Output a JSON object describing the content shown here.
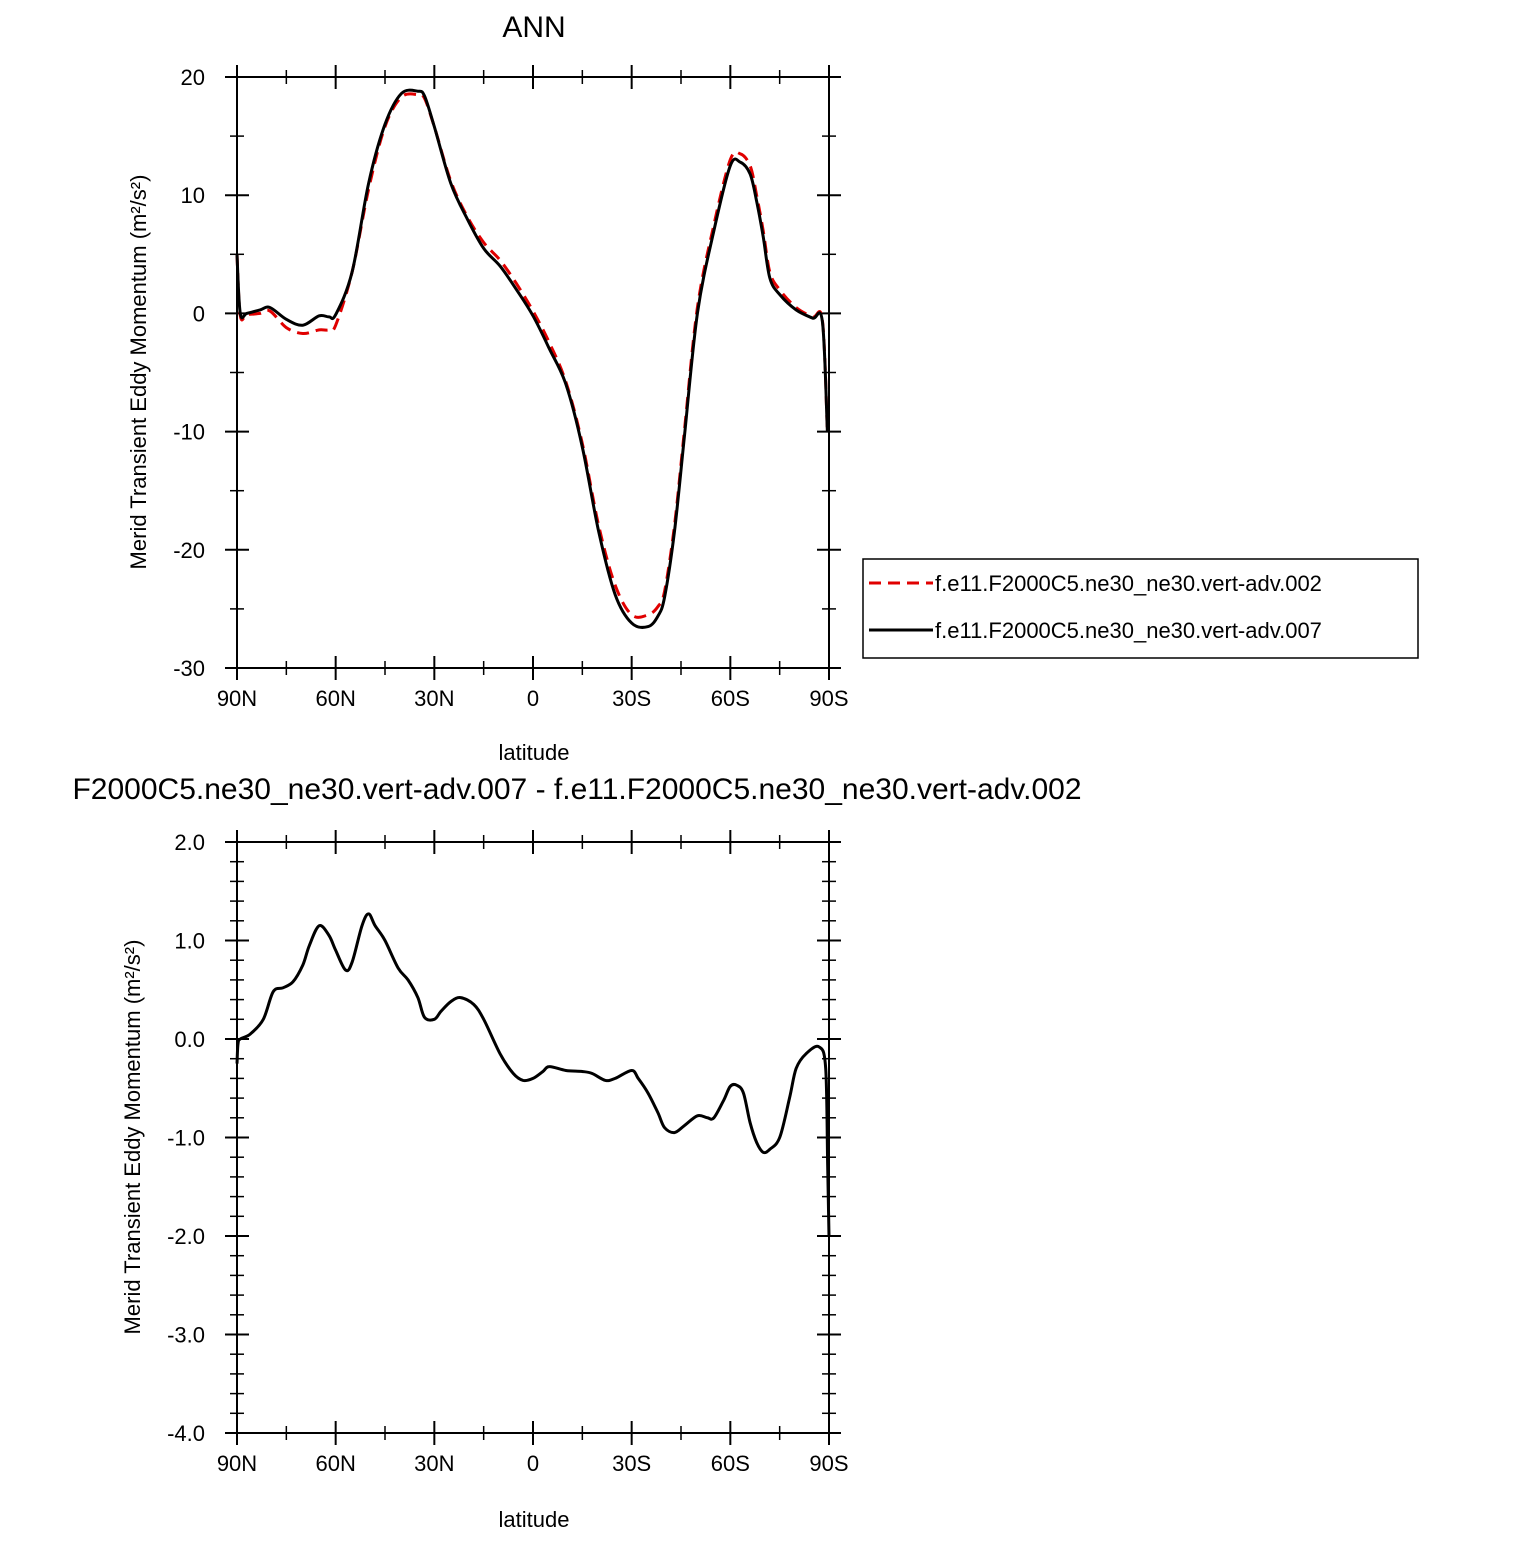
{
  "chart_data": [
    {
      "type": "line",
      "title": "ANN",
      "xlabel": "latitude",
      "ylabel": "Merid Transient Eddy Momentum (m²/s²)",
      "xlim": [
        90,
        -90
      ],
      "ylim": [
        -30,
        20
      ],
      "xticks": [
        90,
        60,
        30,
        0,
        -30,
        -60,
        -90
      ],
      "xtick_labels": [
        "90N",
        "60N",
        "30N",
        "0",
        "30S",
        "60S",
        "90S"
      ],
      "yticks": [
        20,
        10,
        0,
        -10,
        -20,
        -30
      ],
      "ytick_labels": [
        "20",
        "10",
        "0",
        "-10",
        "-20",
        "-30"
      ],
      "grid": false,
      "legend_position": "right",
      "series": [
        {
          "name": "f.e11.F2000C5.ne30_ne30.vert-adv.002",
          "color": "#e00000",
          "dash": "dashed",
          "x": [
            90,
            89,
            87,
            83,
            80,
            75,
            70,
            65,
            62,
            60,
            55,
            50,
            45,
            40,
            35,
            33,
            30,
            25,
            20,
            15,
            10,
            5,
            0,
            -5,
            -10,
            -15,
            -20,
            -25,
            -30,
            -35,
            -38,
            -40,
            -43,
            -46,
            -50,
            -55,
            -60,
            -63,
            -66,
            -68,
            -70,
            -72,
            -75,
            -80,
            -85,
            -88,
            -89.5
          ],
          "y": [
            5.0,
            -0.2,
            -0.1,
            0.0,
            0.2,
            -1.2,
            -1.7,
            -1.4,
            -1.4,
            -1.0,
            3.5,
            10.5,
            15.8,
            18.3,
            18.5,
            18.2,
            15.8,
            11.2,
            8.2,
            6.0,
            4.5,
            2.5,
            0.2,
            -2.5,
            -5.8,
            -11.0,
            -18.0,
            -23.0,
            -25.5,
            -25.5,
            -24.8,
            -23.5,
            -18.0,
            -10.0,
            0.5,
            7.5,
            13.0,
            13.5,
            12.5,
            10.0,
            7.0,
            3.5,
            2.0,
            0.5,
            -0.3,
            -0.6,
            -10.0
          ]
        },
        {
          "name": "f.e11.F2000C5.ne30_ne30.vert-adv.007",
          "color": "#000000",
          "dash": "solid",
          "x": [
            90,
            89,
            87,
            83,
            80,
            75,
            70,
            65,
            62,
            60,
            55,
            50,
            45,
            40,
            35,
            33,
            30,
            25,
            20,
            15,
            10,
            5,
            0,
            -5,
            -10,
            -15,
            -20,
            -25,
            -30,
            -35,
            -38,
            -40,
            -43,
            -46,
            -50,
            -55,
            -60,
            -63,
            -66,
            -68,
            -70,
            -72,
            -75,
            -80,
            -85,
            -88,
            -89.5
          ],
          "y": [
            5.0,
            0.0,
            0.0,
            0.3,
            0.5,
            -0.5,
            -1.0,
            -0.2,
            -0.3,
            -0.1,
            3.5,
            11.0,
            16.0,
            18.6,
            18.8,
            18.4,
            15.8,
            11.0,
            8.0,
            5.5,
            4.0,
            2.0,
            -0.2,
            -3.0,
            -6.0,
            -11.3,
            -18.5,
            -23.8,
            -26.2,
            -26.5,
            -25.6,
            -24.0,
            -18.5,
            -10.5,
            0.0,
            7.0,
            12.5,
            12.8,
            11.8,
            9.5,
            6.5,
            3.0,
            1.6,
            0.3,
            -0.4,
            -0.7,
            -10.0
          ]
        }
      ]
    },
    {
      "type": "line",
      "title": "F2000C5.ne30_ne30.vert-adv.007 - f.e11.F2000C5.ne30_ne30.vert-adv.002",
      "xlabel": "latitude",
      "ylabel": "Merid Transient Eddy Momentum (m²/s²)",
      "xlim": [
        90,
        -90
      ],
      "ylim": [
        -4.0,
        2.0
      ],
      "xticks": [
        90,
        60,
        30,
        0,
        -30,
        -60,
        -90
      ],
      "xtick_labels": [
        "90N",
        "60N",
        "30N",
        "0",
        "30S",
        "60S",
        "90S"
      ],
      "yticks": [
        2.0,
        1.0,
        0.0,
        -1.0,
        -2.0,
        -3.0,
        -4.0
      ],
      "ytick_labels": [
        "2.0",
        "1.0",
        "0.0",
        "-1.0",
        "-2.0",
        "-3.0",
        "-4.0"
      ],
      "grid": false,
      "series": [
        {
          "name": "",
          "color": "#000000",
          "dash": "solid",
          "x": [
            90,
            89.7,
            89,
            86,
            82,
            79,
            76,
            73,
            70,
            68,
            65,
            62,
            60,
            57,
            55,
            52,
            50,
            48,
            45,
            41,
            38,
            35,
            33,
            30,
            28,
            25,
            22,
            18,
            15,
            10,
            6,
            3,
            0,
            -3,
            -5,
            -10,
            -15,
            -18,
            -22,
            -25,
            -30,
            -32,
            -35,
            -38,
            -40,
            -43,
            -46,
            -50,
            -53,
            -55,
            -58,
            -60,
            -62,
            -64,
            -66,
            -68,
            -70,
            -72,
            -75,
            -78,
            -80,
            -83,
            -87,
            -89,
            -89.6,
            -90
          ],
          "y": [
            -0.25,
            -0.05,
            0.0,
            0.05,
            0.2,
            0.48,
            0.52,
            0.58,
            0.75,
            0.95,
            1.15,
            1.05,
            0.9,
            0.7,
            0.78,
            1.15,
            1.27,
            1.15,
            1.0,
            0.72,
            0.6,
            0.42,
            0.22,
            0.2,
            0.28,
            0.38,
            0.42,
            0.35,
            0.2,
            -0.15,
            -0.35,
            -0.42,
            -0.4,
            -0.33,
            -0.28,
            -0.32,
            -0.33,
            -0.35,
            -0.42,
            -0.4,
            -0.32,
            -0.4,
            -0.55,
            -0.75,
            -0.9,
            -0.95,
            -0.88,
            -0.78,
            -0.8,
            -0.8,
            -0.62,
            -0.48,
            -0.47,
            -0.55,
            -0.85,
            -1.05,
            -1.15,
            -1.12,
            -1.0,
            -0.6,
            -0.3,
            -0.15,
            -0.08,
            -0.3,
            -1.3,
            -2.0
          ]
        }
      ]
    }
  ]
}
